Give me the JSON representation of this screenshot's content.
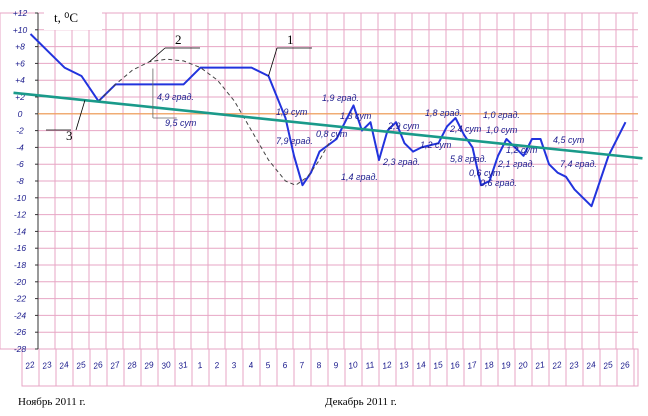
{
  "chart_data": {
    "type": "line",
    "ylabel": "t, ⁰C",
    "ylim": [
      -28,
      12
    ],
    "yticks": [
      "+12",
      "+10",
      "+8",
      "+6",
      "+4",
      "+2",
      "0",
      "-2",
      "-4",
      "-6",
      "-8",
      "-10",
      "-12",
      "-14",
      "-16",
      "-18",
      "-20",
      "-22",
      "-24",
      "-26",
      "-28"
    ],
    "categories": [
      "22",
      "23",
      "24",
      "25",
      "26",
      "27",
      "28",
      "29",
      "30",
      "31",
      "1",
      "2",
      "3",
      "4",
      "5",
      "6",
      "7",
      "8",
      "9",
      "10",
      "11",
      "12",
      "13",
      "14",
      "15",
      "16",
      "17",
      "18",
      "19",
      "20",
      "21",
      "22",
      "23",
      "24",
      "25",
      "26"
    ],
    "months": [
      "Ноябрь 2011 г.",
      "Декабрь 2011 г."
    ],
    "series": [
      {
        "name": "1",
        "color": "#2233dd",
        "points": [
          [
            0,
            9.5
          ],
          [
            1,
            7.5
          ],
          [
            2,
            5.5
          ],
          [
            3,
            4.5
          ],
          [
            4,
            1.5
          ],
          [
            5,
            3.5
          ],
          [
            6,
            3.5
          ],
          [
            7,
            3.5
          ],
          [
            8,
            3.5
          ],
          [
            9,
            3.5
          ],
          [
            10,
            5.5
          ],
          [
            11,
            5.5
          ],
          [
            12,
            5.5
          ],
          [
            13,
            5.5
          ],
          [
            14,
            4.5
          ],
          [
            15,
            -0.5
          ],
          [
            15.5,
            -5
          ],
          [
            16,
            -8.5
          ],
          [
            16.5,
            -7
          ],
          [
            17,
            -4.5
          ],
          [
            18,
            -3
          ],
          [
            19,
            1
          ],
          [
            19.5,
            -2
          ],
          [
            20,
            -1
          ],
          [
            20.5,
            -5.5
          ],
          [
            21,
            -2
          ],
          [
            21.5,
            -1
          ],
          [
            22,
            -3.5
          ],
          [
            22.5,
            -4.5
          ],
          [
            23,
            -4
          ],
          [
            24,
            -3.5
          ],
          [
            24.5,
            -1.5
          ],
          [
            25,
            -0.5
          ],
          [
            25.5,
            -2.5
          ],
          [
            26,
            -4
          ],
          [
            26.5,
            -8.5
          ],
          [
            27,
            -8
          ],
          [
            27.5,
            -5
          ],
          [
            28,
            -3
          ],
          [
            28.5,
            -4
          ],
          [
            29,
            -5
          ],
          [
            29.5,
            -3
          ],
          [
            30,
            -3
          ],
          [
            30.5,
            -6
          ],
          [
            31,
            -7
          ],
          [
            31.5,
            -7.5
          ],
          [
            32,
            -9
          ],
          [
            33,
            -11
          ],
          [
            33.5,
            -8
          ],
          [
            34,
            -5
          ],
          [
            35,
            -1
          ]
        ]
      },
      {
        "name": "2",
        "color": "#444444",
        "points": [
          [
            4,
            1.5
          ],
          [
            5,
            3.5
          ],
          [
            6,
            5.2
          ],
          [
            7,
            6.2
          ],
          [
            8,
            6.5
          ],
          [
            9,
            6.3
          ],
          [
            10,
            5.5
          ],
          [
            11,
            4
          ],
          [
            12,
            1.5
          ],
          [
            13,
            -2
          ],
          [
            14,
            -5.5
          ],
          [
            15,
            -8
          ],
          [
            15.6,
            -8.5
          ],
          [
            16.3,
            -7.5
          ],
          [
            17,
            -5.5
          ],
          [
            17.7,
            -3
          ]
        ]
      },
      {
        "name": "3",
        "color": "#1a9a8a",
        "points": [
          [
            -1,
            2.5
          ],
          [
            36,
            -5.3
          ]
        ]
      }
    ],
    "reference_line": {
      "y": 0,
      "color": "#f0a050"
    },
    "annotations": [
      "4,9 град.",
      "9,5 сут",
      "1,9 сут",
      "7,9 град.",
      "1,9 град.",
      "1,3 сут",
      "0,8 сут",
      "1,4 град.",
      "2,9 сут",
      "2,3 град.",
      "1,8 град.",
      "2,4 сут",
      "1,2 сут",
      "5,8 град.",
      "1,0 град.",
      "1,0 сут",
      "0,6 сут",
      "0,6 град.",
      "1,2 сут",
      "2,1 град.",
      "4,5 сут",
      "7,4 град."
    ],
    "grid": true,
    "legend": "none"
  }
}
